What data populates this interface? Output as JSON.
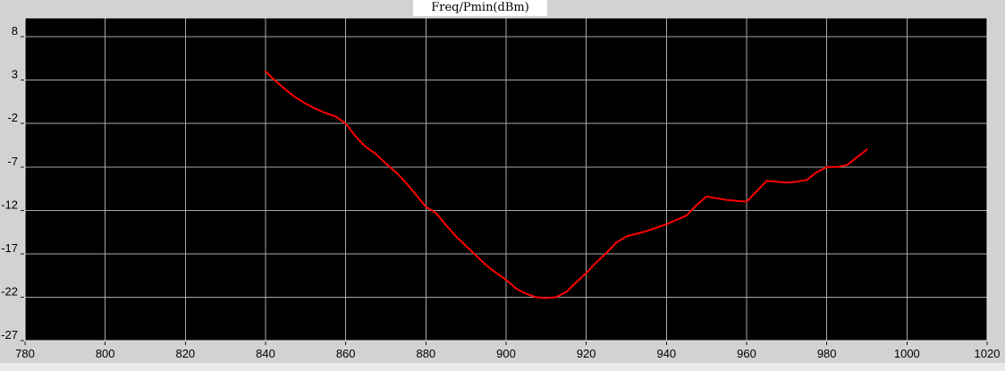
{
  "window": {
    "background_color": "#d2d2d2",
    "footer_strip_color": "#e9e9e9"
  },
  "chart_data": {
    "type": "line",
    "title": "Freq/Pmin(dBm)",
    "xlabel": "",
    "ylabel": "",
    "xlim": [
      780,
      1020
    ],
    "ylim": [
      -27,
      10.17
    ],
    "xticks": [
      780,
      800,
      820,
      840,
      860,
      880,
      900,
      920,
      940,
      960,
      980,
      1000,
      1020
    ],
    "yticks": [
      8,
      3,
      -2,
      -7,
      -12,
      -17,
      -22,
      -27
    ],
    "grid": true,
    "legend_position": "none",
    "plot_bg_color": "#000000",
    "grid_color": "#a8a8a8",
    "plot_border_color": "#e8e8e8",
    "tick_mark_color": "#1a1a1a",
    "tick_label_color": "#000000",
    "series": [
      {
        "name": "Pmin",
        "color": "#ff0000",
        "stroke_width": 2,
        "points": [
          [
            840,
            4.0
          ],
          [
            842.5,
            2.9
          ],
          [
            845,
            1.9
          ],
          [
            847.5,
            1.0
          ],
          [
            850,
            0.3
          ],
          [
            852.5,
            -0.3
          ],
          [
            855,
            -0.8
          ],
          [
            857.5,
            -1.2
          ],
          [
            860,
            -2.0
          ],
          [
            862.5,
            -3.5
          ],
          [
            865,
            -4.7
          ],
          [
            867.5,
            -5.5
          ],
          [
            870,
            -6.6
          ],
          [
            872.5,
            -7.6
          ],
          [
            875,
            -8.8
          ],
          [
            877.5,
            -10.2
          ],
          [
            880,
            -11.6
          ],
          [
            882.5,
            -12.3
          ],
          [
            885,
            -13.7
          ],
          [
            887.5,
            -15.0
          ],
          [
            890,
            -16.1
          ],
          [
            892.5,
            -17.2
          ],
          [
            895,
            -18.3
          ],
          [
            897.5,
            -19.2
          ],
          [
            900,
            -20.0
          ],
          [
            902.5,
            -21.0
          ],
          [
            905,
            -21.6
          ],
          [
            907.5,
            -22.0
          ],
          [
            910,
            -22.1
          ],
          [
            912.5,
            -22.0
          ],
          [
            915,
            -21.4
          ],
          [
            917.5,
            -20.3
          ],
          [
            920,
            -19.2
          ],
          [
            922.5,
            -18.0
          ],
          [
            925,
            -16.9
          ],
          [
            927.5,
            -15.7
          ],
          [
            930,
            -15.0
          ],
          [
            932.5,
            -14.7
          ],
          [
            935,
            -14.4
          ],
          [
            937.5,
            -14.0
          ],
          [
            940,
            -13.6
          ],
          [
            942.5,
            -13.1
          ],
          [
            945,
            -12.6
          ],
          [
            947.5,
            -11.4
          ],
          [
            950,
            -10.4
          ],
          [
            952.5,
            -10.6
          ],
          [
            955,
            -10.8
          ],
          [
            957.5,
            -10.9
          ],
          [
            960,
            -11.0
          ],
          [
            962.5,
            -9.8
          ],
          [
            965,
            -8.6
          ],
          [
            967.5,
            -8.7
          ],
          [
            970,
            -8.8
          ],
          [
            972.5,
            -8.7
          ],
          [
            975,
            -8.5
          ],
          [
            977.5,
            -7.6
          ],
          [
            980,
            -7.0
          ],
          [
            982.5,
            -7.0
          ],
          [
            985,
            -6.8
          ],
          [
            987.5,
            -5.9
          ],
          [
            990,
            -5.0
          ]
        ]
      }
    ]
  }
}
